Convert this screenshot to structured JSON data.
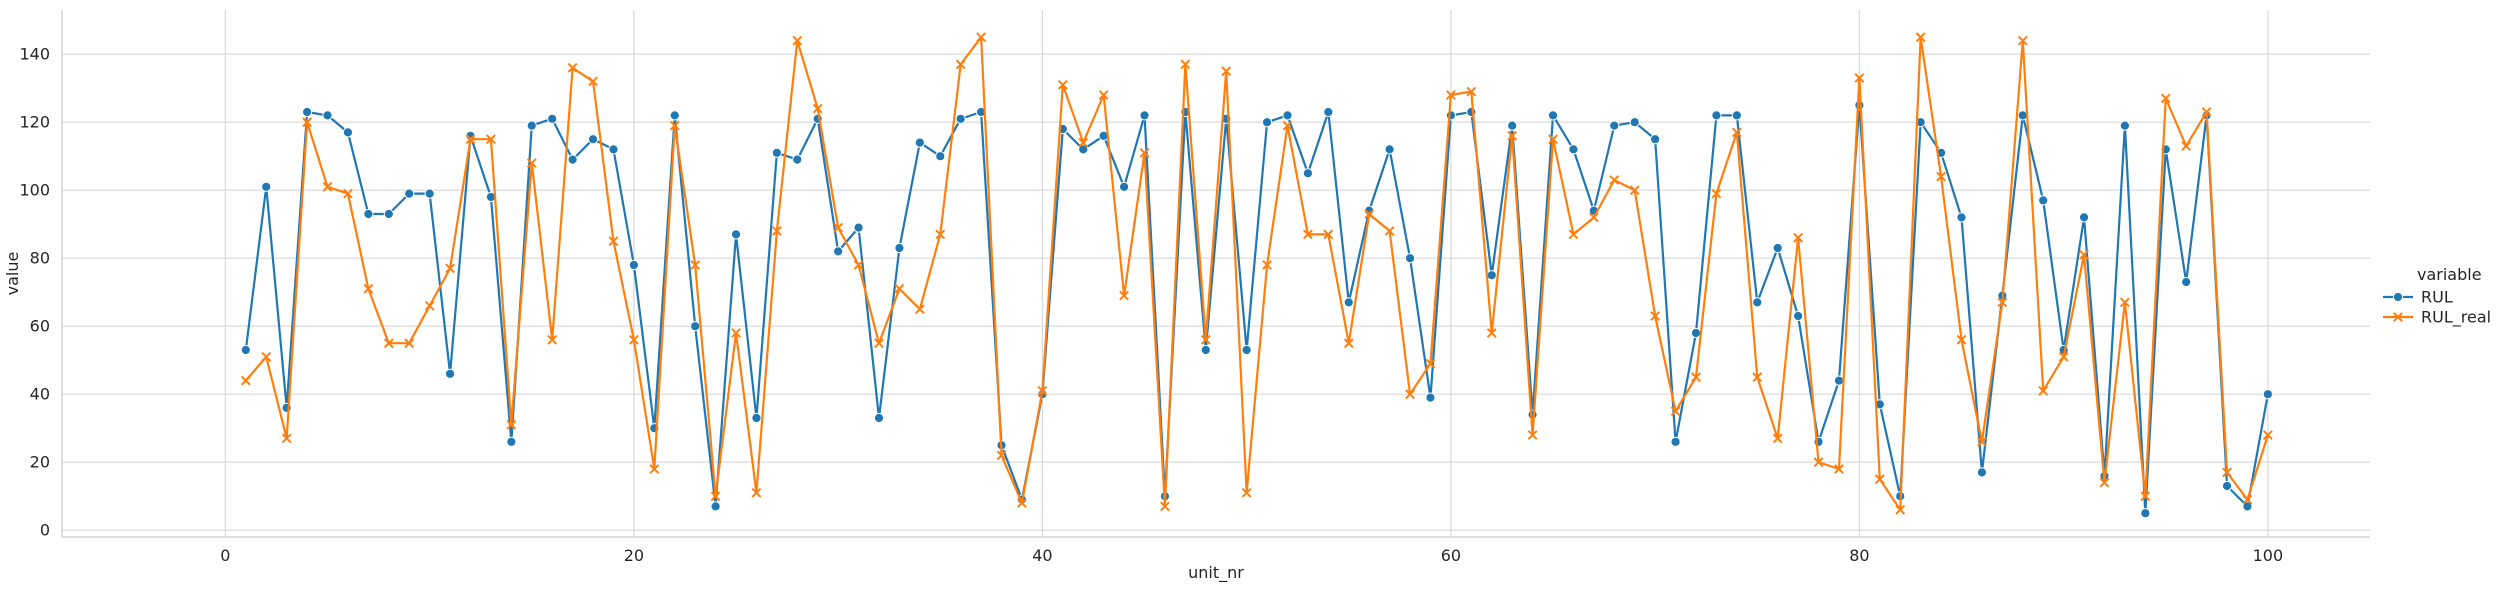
{
  "chart_data": {
    "type": "line",
    "xlabel": "unit_nr",
    "ylabel": "value",
    "xlim": [
      -8,
      105
    ],
    "ylim": [
      -2,
      153
    ],
    "xticks": [
      0,
      20,
      40,
      60,
      80,
      100
    ],
    "yticks": [
      0,
      20,
      40,
      60,
      80,
      100,
      120,
      140
    ],
    "grid": true,
    "legend": {
      "title": "variable",
      "placement": "center-right"
    },
    "x": [
      1,
      2,
      3,
      4,
      5,
      6,
      7,
      8,
      9,
      10,
      11,
      12,
      13,
      14,
      15,
      16,
      17,
      18,
      19,
      20,
      21,
      22,
      23,
      24,
      25,
      26,
      27,
      28,
      29,
      30,
      31,
      32,
      33,
      34,
      35,
      36,
      37,
      38,
      39,
      40,
      41,
      42,
      43,
      44,
      45,
      46,
      47,
      48,
      49,
      50,
      51,
      52,
      53,
      54,
      55,
      56,
      57,
      58,
      59,
      60,
      61,
      62,
      63,
      64,
      65,
      66,
      67,
      68,
      69,
      70,
      71,
      72,
      73,
      74,
      75,
      76,
      77,
      78,
      79,
      80,
      81,
      82,
      83,
      84,
      85,
      86,
      87,
      88,
      89,
      90,
      91,
      92,
      93,
      94,
      95,
      96,
      97,
      98,
      99,
      100
    ],
    "series": [
      {
        "name": "RUL",
        "color": "#1f77b4",
        "marker": "circle",
        "values": [
          53,
          101,
          36,
          123,
          122,
          117,
          93,
          93,
          99,
          99,
          46,
          116,
          98,
          26,
          119,
          121,
          109,
          115,
          112,
          78,
          30,
          122,
          60,
          7,
          87,
          33,
          111,
          109,
          121,
          82,
          89,
          33,
          83,
          114,
          110,
          121,
          123,
          25,
          9,
          40,
          118,
          112,
          116,
          101,
          122,
          10,
          123,
          53,
          121,
          53,
          120,
          122,
          105,
          123,
          67,
          94,
          112,
          80,
          39,
          122,
          123,
          75,
          119,
          34,
          122,
          112,
          94,
          119,
          120,
          115,
          26,
          58,
          122,
          122,
          67,
          83,
          63,
          26,
          44,
          125,
          37,
          10,
          120,
          111,
          92,
          17,
          69,
          122,
          97,
          53,
          92,
          16,
          119,
          5,
          112,
          73,
          122,
          13,
          7,
          40
        ]
      },
      {
        "name": "RUL_real",
        "color": "#ff7f0e",
        "marker": "x",
        "values": [
          44,
          51,
          27,
          120,
          101,
          99,
          71,
          55,
          55,
          66,
          77,
          115,
          115,
          31,
          108,
          56,
          136,
          132,
          85,
          56,
          18,
          119,
          78,
          10,
          58,
          11,
          88,
          144,
          124,
          89,
          78,
          55,
          71,
          65,
          87,
          137,
          145,
          22,
          8,
          41,
          131,
          114,
          128,
          69,
          111,
          7,
          137,
          56,
          135,
          11,
          78,
          119,
          87,
          87,
          55,
          93,
          88,
          40,
          49,
          128,
          129,
          58,
          116,
          28,
          115,
          87,
          92,
          103,
          100,
          63,
          35,
          45,
          99,
          117,
          45,
          27,
          86,
          20,
          18,
          133,
          15,
          6,
          145,
          104,
          56,
          26,
          67,
          144,
          41,
          51,
          81,
          14,
          67,
          10,
          127,
          113,
          123,
          17,
          9,
          28
        ]
      }
    ]
  }
}
